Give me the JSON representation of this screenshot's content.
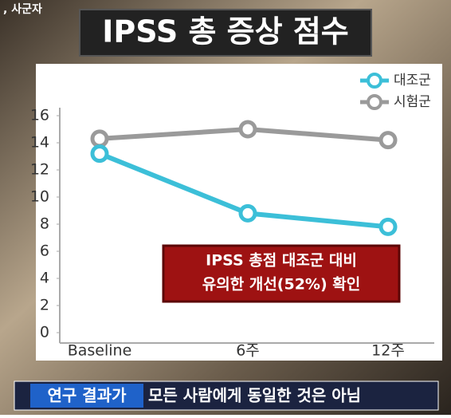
{
  "header": {
    "corner_text": ", 사군자"
  },
  "chart_data": {
    "type": "line",
    "title": "IPSS 총 증상 점수",
    "categories": [
      "Baseline",
      "6주",
      "12주"
    ],
    "series": [
      {
        "name": "대조군",
        "color": "#3cbfd8",
        "values": [
          13.2,
          8.8,
          7.8
        ]
      },
      {
        "name": "시험군",
        "color": "#9a9a9a",
        "values": [
          14.3,
          15.0,
          14.2
        ]
      }
    ],
    "ylim": [
      0,
      16
    ],
    "yticks": [
      0,
      2,
      4,
      6,
      8,
      10,
      12,
      14,
      16
    ],
    "grid": false,
    "legend": "upper right",
    "annotation": [
      "IPSS 총점 대조군 대비",
      "유의한 개선(52%) 확인"
    ]
  },
  "caption": {
    "highlight": "연구 결과가",
    "text": "모든 사람에게 동일한 것은 아님"
  }
}
